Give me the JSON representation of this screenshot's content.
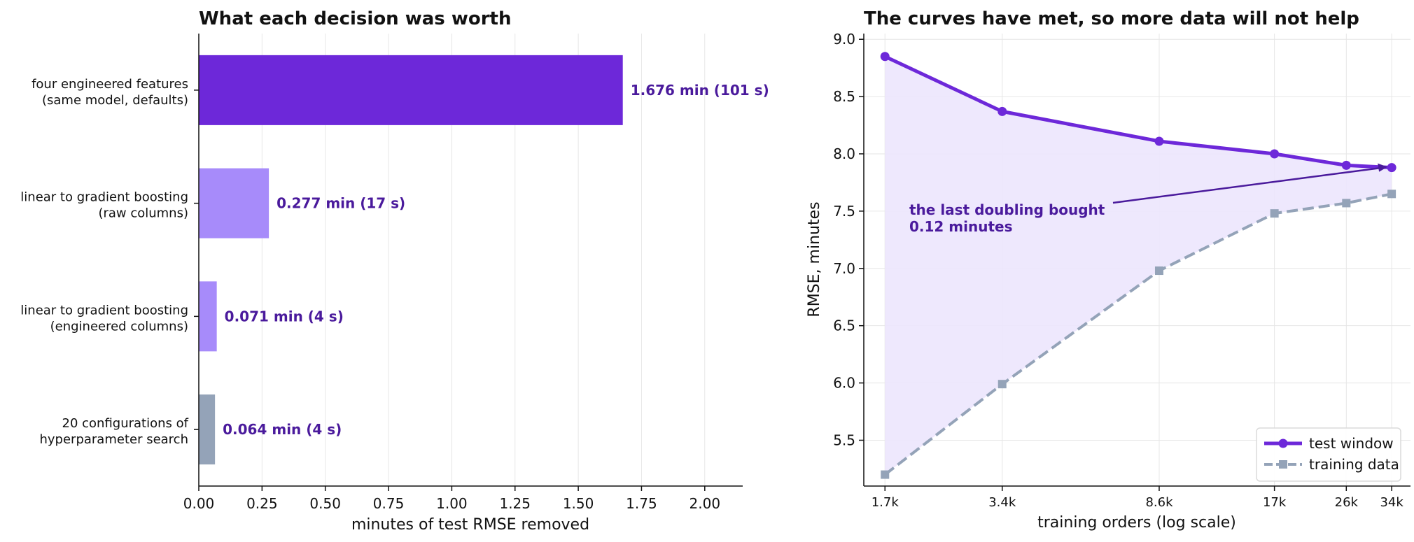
{
  "colors": {
    "accent_dark": "#6d28d9",
    "accent_light": "#a78bfa",
    "neutral": "#94a3b8",
    "label": "#4a1a9c",
    "fill": "#ece6fd"
  },
  "chart_data": [
    {
      "type": "bar",
      "orientation": "horizontal",
      "title": "What each decision was worth",
      "xlabel": "minutes of test RMSE removed",
      "ylabel": "",
      "xlim": [
        0,
        2.15
      ],
      "xticks": [
        "0.00",
        "0.25",
        "0.50",
        "0.75",
        "1.00",
        "1.25",
        "1.50",
        "1.75",
        "2.00"
      ],
      "grid": "vertical",
      "bars": [
        {
          "label_lines": [
            "four engineered features",
            "(same model, defaults)"
          ],
          "value": 1.676,
          "label": "1.676 min   (101 s)",
          "color": "#6d28d9"
        },
        {
          "label_lines": [
            "linear to gradient boosting",
            "(raw columns)"
          ],
          "value": 0.277,
          "label": "0.277 min   (17 s)",
          "color": "#a78bfa"
        },
        {
          "label_lines": [
            "linear to gradient boosting",
            "(engineered columns)"
          ],
          "value": 0.071,
          "label": "0.071 min   (4 s)",
          "color": "#a78bfa"
        },
        {
          "label_lines": [
            "20 configurations of",
            "hyperparameter search"
          ],
          "value": 0.064,
          "label": "0.064 min   (4 s)",
          "color": "#94a3b8"
        }
      ]
    },
    {
      "type": "line",
      "title": "The curves have met, so more data will not help",
      "xlabel": "training orders (log scale)",
      "ylabel": "RMSE, minutes",
      "xscale": "log",
      "xlim": [
        1500,
        38000
      ],
      "ylim": [
        5.1,
        9.05
      ],
      "x": [
        1700,
        3400,
        8600,
        17000,
        26000,
        34000
      ],
      "xtick_labels": [
        "1.7k",
        "3.4k",
        "8.6k",
        "17k",
        "26k",
        "34k"
      ],
      "yticks": [
        "5.5",
        "6.0",
        "6.5",
        "7.0",
        "7.5",
        "8.0",
        "8.5",
        "9.0"
      ],
      "grid": true,
      "series": [
        {
          "name": "test window",
          "values": [
            8.85,
            8.37,
            8.11,
            8.0,
            7.9,
            7.88
          ],
          "color": "#6d28d9",
          "style": "solid",
          "marker": "circle"
        },
        {
          "name": "training data",
          "values": [
            5.2,
            5.99,
            6.98,
            7.48,
            7.57,
            7.65
          ],
          "color": "#94a3b8",
          "style": "dashed",
          "marker": "square"
        }
      ],
      "annotation": {
        "lines": [
          "the last doubling bought",
          "0.12 minutes"
        ],
        "arrow_to": [
          34000,
          7.88
        ]
      },
      "legend_position": "bottom-right"
    }
  ]
}
